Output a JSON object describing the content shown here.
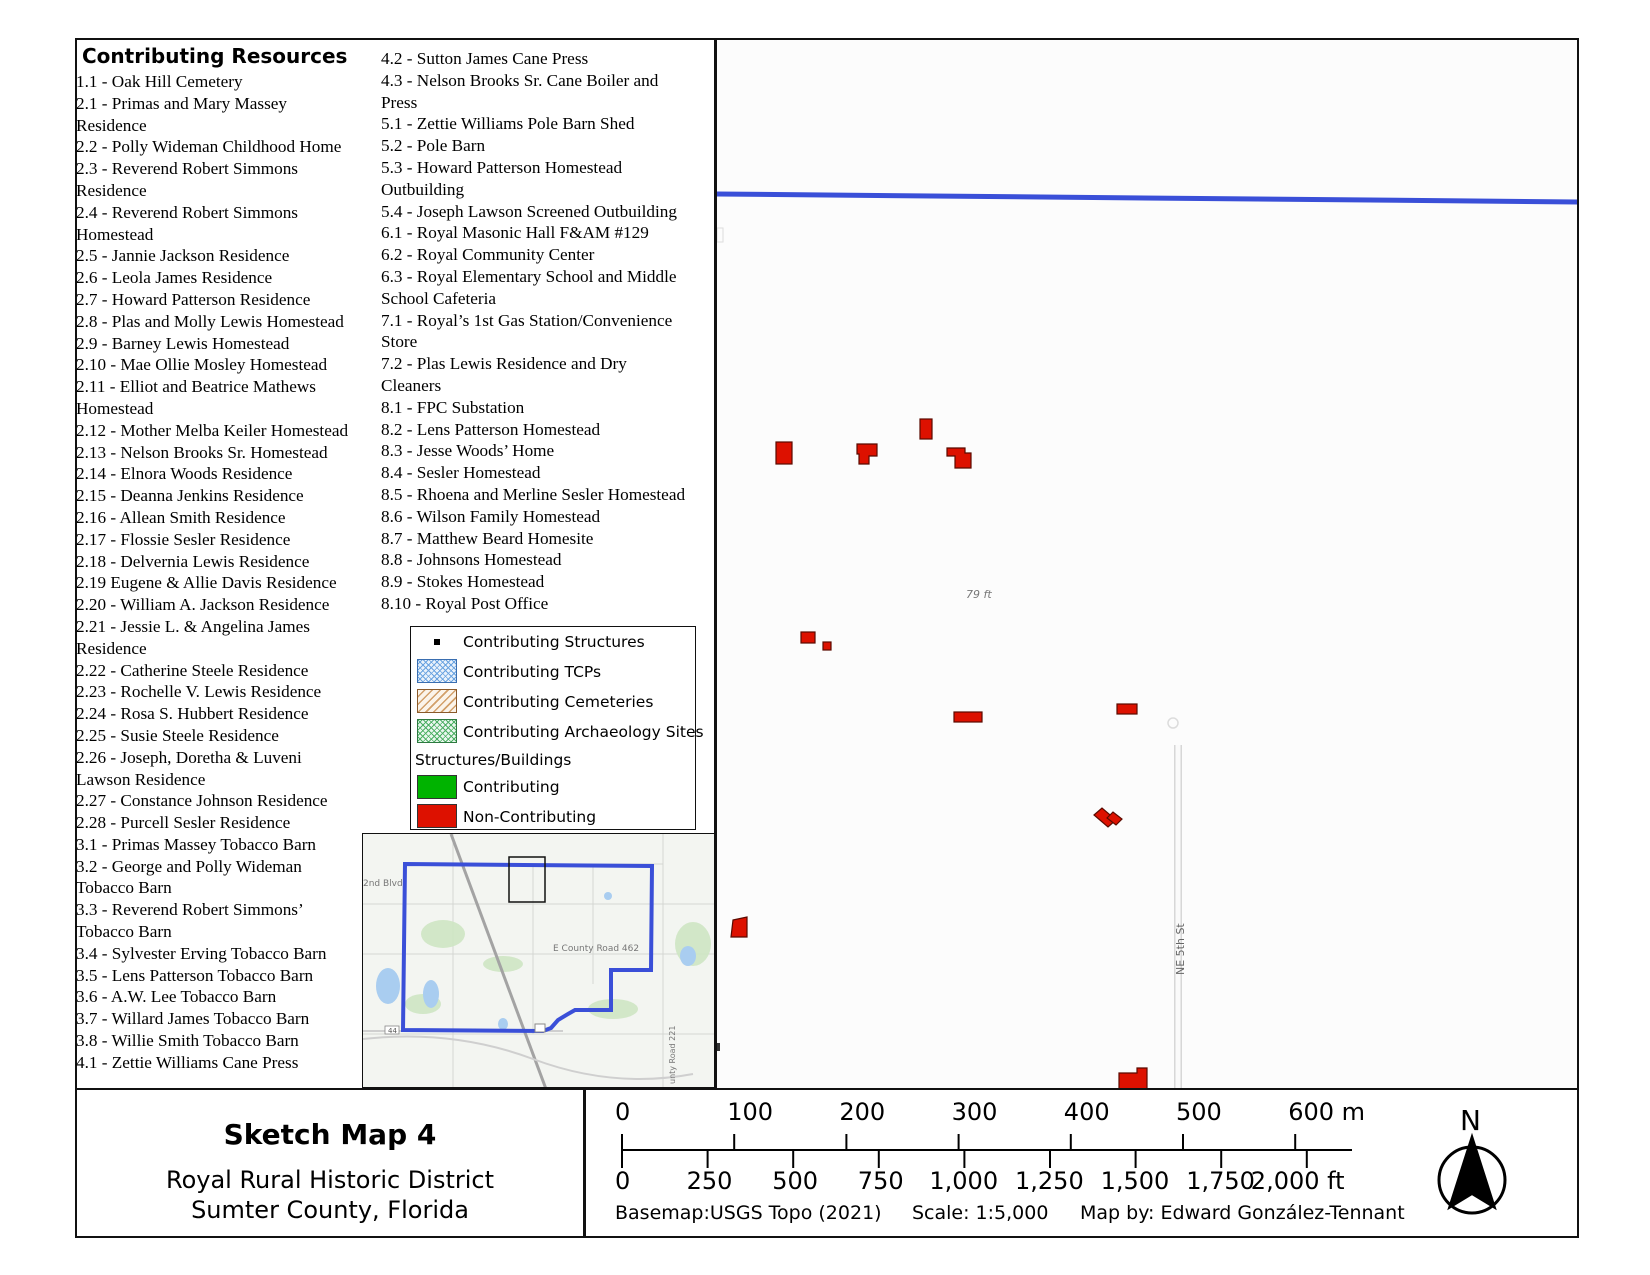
{
  "resources": {
    "title": "Contributing Resources",
    "column1": [
      "1.1 - Oak Hill Cemetery",
      "2.1 - Primas and Mary Massey",
      "Residence",
      "2.2 - Polly Wideman Childhood Home",
      "2.3 - Reverend Robert Simmons",
      "Residence",
      "2.4 - Reverend Robert Simmons",
      "Homestead",
      "2.5 - Jannie Jackson Residence",
      "2.6 - Leola James Residence",
      "2.7 - Howard Patterson Residence",
      "2.8 - Plas and Molly Lewis Homestead",
      "2.9 - Barney Lewis Homestead",
      "2.10 - Mae Ollie Mosley Homestead",
      "2.11 - Elliot and Beatrice Mathews",
      "Homestead",
      "2.12 - Mother Melba Keiler Homestead",
      "2.13 - Nelson Brooks Sr. Homestead",
      "2.14 - Elnora Woods Residence",
      "2.15 - Deanna Jenkins Residence",
      "2.16 - Allean Smith Residence",
      "2.17 - Flossie Sesler Residence",
      "2.18 - Delvernia Lewis Residence",
      "2.19 Eugene & Allie Davis Residence",
      "2.20 - William A. Jackson Residence",
      "2.21 - Jessie L. & Angelina James",
      "Residence",
      "2.22 - Catherine Steele Residence",
      "2.23 -  Rochelle V. Lewis Residence",
      "2.24 - Rosa S. Hubbert Residence",
      "2.25 - Susie Steele Residence",
      "2.26 - Joseph, Doretha & Luveni",
      "Lawson Residence",
      "2.27 - Constance Johnson Residence",
      "2.28 - Purcell Sesler Residence",
      "3.1 - Primas Massey Tobacco Barn",
      "3.2 - George and Polly Wideman",
      "Tobacco Barn",
      "3.3 - Reverend Robert Simmons’",
      "Tobacco Barn",
      "3.4 - Sylvester Erving Tobacco Barn",
      "3.5 - Lens Patterson Tobacco Barn",
      "3.6 - A.W. Lee Tobacco Barn",
      "3.7 - Willard James Tobacco Barn",
      "3.8 - Willie Smith Tobacco Barn",
      "4.1 - Zettie Williams Cane Press"
    ],
    "column2": [
      "4.2 - Sutton James Cane Press",
      "4.3 - Nelson Brooks Sr. Cane Boiler and",
      "Press",
      "5.1 - Zettie Williams Pole Barn Shed",
      "5.2 - Pole Barn",
      "5.3 - Howard Patterson Homestead",
      "Outbuilding",
      "5.4 - Joseph Lawson Screened Outbuilding",
      "6.1 - Royal Masonic Hall F&AM #129",
      "6.2 - Royal Community Center",
      "6.3 - Royal Elementary School and Middle",
      "School Cafeteria",
      "7.1 - Royal’s 1st Gas Station/Convenience",
      "Store",
      "7.2 - Plas Lewis Residence and Dry",
      "Cleaners",
      "8.1 - FPC Substation",
      "8.2 - Lens Patterson Homestead",
      "8.3 - Jesse Woods’ Home",
      "8.4 - Sesler Homestead",
      "8.5 - Rhoena and Merline Sesler Homestead",
      "8.6 - Wilson Family Homestead",
      "8.7 - Matthew Beard Homesite",
      "8.8 - Johnsons Homestead",
      "8.9 - Stokes Homestead",
      "8.10 - Royal Post Office"
    ]
  },
  "legend": {
    "structures": "Contributing Structures",
    "tcps": "Contributing TCPs",
    "cemeteries": "Contributing Cemeteries",
    "archaeology": "Contributing Archaeology Sites",
    "buildings_heading": "Structures/Buildings",
    "contributing": "Contributing",
    "non_contributing": "Non-Contributing",
    "colors": {
      "contributing": "#00b300",
      "non_contributing": "#dd1100",
      "tcp": "#4a8fd6",
      "cemetery": "#b37a3c",
      "archaeology": "#2f9a4a",
      "boundary": "#3a4fd8"
    }
  },
  "inset": {
    "labels": {
      "street1": "2nd Blvd",
      "road1": "E County Road 462",
      "road2": "unty Road 221",
      "hwy": "44"
    }
  },
  "map": {
    "elevation_label": "79 ft",
    "street_label": "NE 5th St"
  },
  "title_block": {
    "title": "Sketch Map 4",
    "line1": "Royal Rural Historic District",
    "line2": "Sumter County, Florida"
  },
  "scale_bar": {
    "meters": [
      "0",
      "100",
      "200",
      "300",
      "400",
      "500",
      "600 m"
    ],
    "feet": [
      "0",
      "250",
      "500",
      "750",
      "1,000",
      "1,250",
      "1,500",
      "1,750",
      "2,000 ft"
    ],
    "basemap": "Basemap:USGS Topo (2021)",
    "scale": "Scale: 1:5,000",
    "author": "Map by: Edward González-Tennant"
  },
  "north_arrow": {
    "label": "N"
  }
}
